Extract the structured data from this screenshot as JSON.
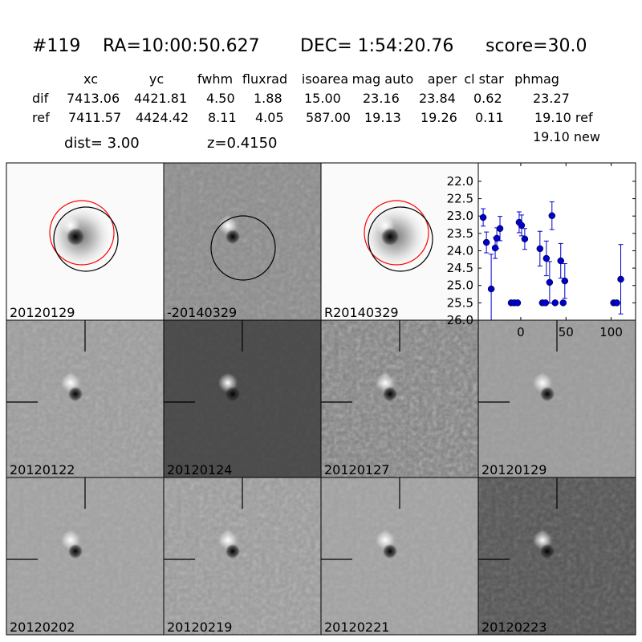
{
  "header": {
    "id": "#119",
    "ra": "RA=10:00:50.627",
    "dec": "DEC= 1:54:20.76",
    "score": "score=30.0"
  },
  "table": {
    "columns": [
      "xc",
      "yc",
      "fwhm",
      "fluxrad",
      "isoarea",
      "mag auto",
      "aper",
      "cl star",
      "phmag"
    ],
    "rows": [
      {
        "label": "dif",
        "values": [
          "7413.06",
          "4421.81",
          "4.50",
          "1.88",
          "15.00",
          "23.16",
          "23.84",
          "0.62",
          "23.27"
        ]
      },
      {
        "label": "ref",
        "values": [
          "7411.57",
          "4424.42",
          "8.11",
          "4.05",
          "587.00",
          "19.13",
          "19.26",
          "0.11",
          "19.10 ref"
        ]
      }
    ],
    "extra": "19.10 new"
  },
  "dist": "dist=  3.00",
  "z": "z=0.4150",
  "panels": [
    {
      "label": "20120129"
    },
    {
      "label": "-20140329"
    },
    {
      "label": "R20140329"
    },
    {
      "label": "20120122"
    },
    {
      "label": "20120124"
    },
    {
      "label": "20120127"
    },
    {
      "label": "20120129",
      "label_color": "#ff0000"
    },
    {
      "label": "20120202"
    },
    {
      "label": "20120219"
    },
    {
      "label": "20120221"
    },
    {
      "label": "20120223"
    }
  ],
  "chart_data": {
    "type": "scatter",
    "x": [
      -41.6,
      -38,
      -32.7,
      -28.3,
      -26.5,
      -23,
      -10.6,
      -7,
      -3.5,
      -1.8,
      0.9,
      4.4,
      21.2,
      23.9,
      27.4,
      28.3,
      31.9,
      34.5,
      38,
      44.2,
      46.9,
      48.7,
      102.7,
      106.2,
      110.6
    ],
    "series": [
      {
        "color": "#0000cc",
        "values": [
          23.04,
          23.76,
          25.1,
          23.92,
          23.64,
          23.36,
          25.5,
          25.5,
          25.5,
          23.18,
          23.27,
          23.66,
          23.94,
          25.5,
          25.5,
          24.22,
          24.91,
          22.99,
          25.5,
          24.29,
          25.5,
          24.87,
          25.5,
          25.5,
          24.82
        ],
        "errors": [
          0.25,
          0.3,
          1.0,
          0.3,
          0.3,
          0.35,
          0,
          0,
          0,
          0.3,
          0.3,
          0.3,
          0.5,
          0,
          0,
          0.5,
          0.6,
          0.4,
          0,
          0.5,
          0,
          0.5,
          0,
          0,
          1.0
        ]
      }
    ],
    "xlim": [
      -47,
      127
    ],
    "ylim": [
      26.0,
      21.47
    ],
    "xticks": [
      0,
      50,
      100
    ],
    "yticks": [
      {
        "value": 22,
        "label": "22.0"
      },
      {
        "value": 22.5,
        "label": "22.5"
      },
      {
        "value": 23,
        "label": "23.0"
      },
      {
        "value": 23.5,
        "label": "23.5"
      },
      {
        "value": 24,
        "label": "24.0"
      },
      {
        "value": 24.5,
        "label": "24.5"
      },
      {
        "value": 25,
        "label": "25.0"
      },
      {
        "value": 25.5,
        "label": "25.5"
      },
      {
        "value": 26,
        "label": "26.0"
      }
    ]
  }
}
